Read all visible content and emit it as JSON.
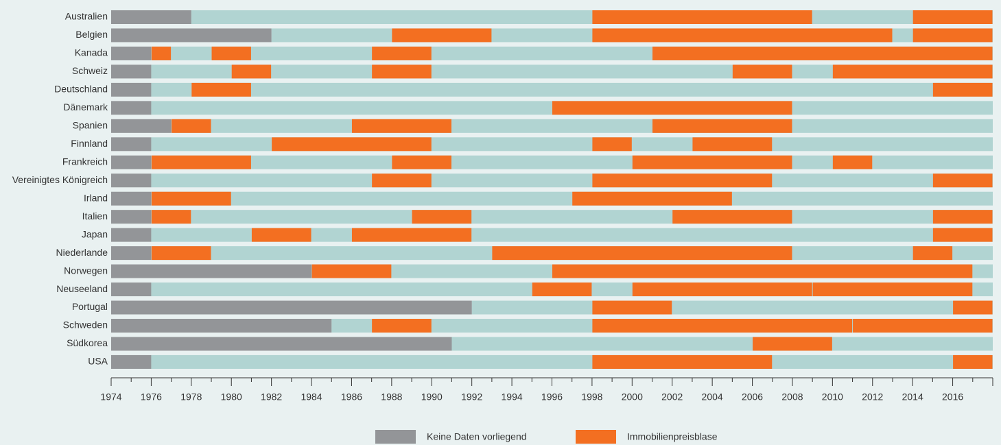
{
  "chart_data": {
    "type": "timeline",
    "xlim": [
      1974,
      2018
    ],
    "xticks": [
      1974,
      1976,
      1978,
      1980,
      1982,
      1984,
      1986,
      1988,
      1990,
      1992,
      1994,
      1996,
      1998,
      2000,
      2002,
      2004,
      2006,
      2008,
      2010,
      2012,
      2014,
      2016
    ],
    "base_color": "#b1d4d2",
    "legend": [
      {
        "name": "Keine Daten vorliegend",
        "color": "#939598"
      },
      {
        "name": "Immobilienpreisblase",
        "color": "#f36f21"
      }
    ],
    "rows": [
      {
        "name": "Australien",
        "no_data_until": 1978,
        "bubbles": [
          [
            1998,
            2009
          ],
          [
            2014,
            2018
          ]
        ]
      },
      {
        "name": "Belgien",
        "no_data_until": 1982,
        "bubbles": [
          [
            1988,
            1993
          ],
          [
            1998,
            2013
          ],
          [
            2014,
            2018
          ]
        ]
      },
      {
        "name": "Kanada",
        "no_data_until": 1976,
        "bubbles": [
          [
            1976,
            1977
          ],
          [
            1979,
            1981
          ],
          [
            1987,
            1990
          ],
          [
            2001,
            2018
          ]
        ]
      },
      {
        "name": "Schweiz",
        "no_data_until": 1976,
        "bubbles": [
          [
            1980,
            1982
          ],
          [
            1987,
            1990
          ],
          [
            2005,
            2008
          ],
          [
            2010,
            2018
          ]
        ]
      },
      {
        "name": "Deutschland",
        "no_data_until": 1976,
        "bubbles": [
          [
            1978,
            1981
          ],
          [
            2015,
            2018
          ]
        ]
      },
      {
        "name": "Dänemark",
        "no_data_until": 1976,
        "bubbles": [
          [
            1996,
            2008
          ]
        ]
      },
      {
        "name": "Spanien",
        "no_data_until": 1977,
        "bubbles": [
          [
            1977,
            1979
          ],
          [
            1986,
            1991
          ],
          [
            2001,
            2008
          ]
        ]
      },
      {
        "name": "Finnland",
        "no_data_until": 1976,
        "bubbles": [
          [
            1982,
            1990
          ],
          [
            1998,
            2000
          ],
          [
            2003,
            2007
          ]
        ]
      },
      {
        "name": "Frankreich",
        "no_data_until": 1976,
        "bubbles": [
          [
            1976,
            1981
          ],
          [
            1988,
            1991
          ],
          [
            2000,
            2008
          ],
          [
            2010,
            2012
          ]
        ]
      },
      {
        "name": "Vereinigtes Königreich",
        "no_data_until": 1976,
        "bubbles": [
          [
            1987,
            1990
          ],
          [
            1998,
            2007
          ],
          [
            2015,
            2018
          ]
        ]
      },
      {
        "name": "Irland",
        "no_data_until": 1976,
        "bubbles": [
          [
            1976,
            1980
          ],
          [
            1997,
            2005
          ]
        ]
      },
      {
        "name": "Italien",
        "no_data_until": 1976,
        "bubbles": [
          [
            1976,
            1978
          ],
          [
            1989,
            1992
          ],
          [
            2002,
            2008
          ],
          [
            2015,
            2018
          ]
        ]
      },
      {
        "name": "Japan",
        "no_data_until": 1976,
        "bubbles": [
          [
            1981,
            1984
          ],
          [
            1986,
            1992
          ],
          [
            2015,
            2018
          ]
        ]
      },
      {
        "name": "Niederlande",
        "no_data_until": 1976,
        "bubbles": [
          [
            1976,
            1979
          ],
          [
            1993,
            2008
          ],
          [
            2014,
            2016
          ]
        ]
      },
      {
        "name": "Norwegen",
        "no_data_until": 1984,
        "bubbles": [
          [
            1984,
            1988
          ],
          [
            1996,
            2017
          ]
        ]
      },
      {
        "name": "Neuseeland",
        "no_data_until": 1976,
        "bubbles": [
          [
            1995,
            1998
          ],
          [
            2000,
            2009
          ],
          [
            2009,
            2017
          ]
        ]
      },
      {
        "name": "Portugal",
        "no_data_until": 1992,
        "bubbles": [
          [
            1998,
            2002
          ],
          [
            2016,
            2018
          ]
        ]
      },
      {
        "name": "Schweden",
        "no_data_until": 1985,
        "bubbles": [
          [
            1987,
            1990
          ],
          [
            1998,
            2011
          ],
          [
            2011,
            2018
          ]
        ]
      },
      {
        "name": "Südkorea",
        "no_data_until": 1991,
        "bubbles": [
          [
            2006,
            2010
          ]
        ]
      },
      {
        "name": "USA",
        "no_data_until": 1976,
        "bubbles": [
          [
            1998,
            2007
          ],
          [
            2016,
            2018
          ]
        ]
      }
    ]
  }
}
